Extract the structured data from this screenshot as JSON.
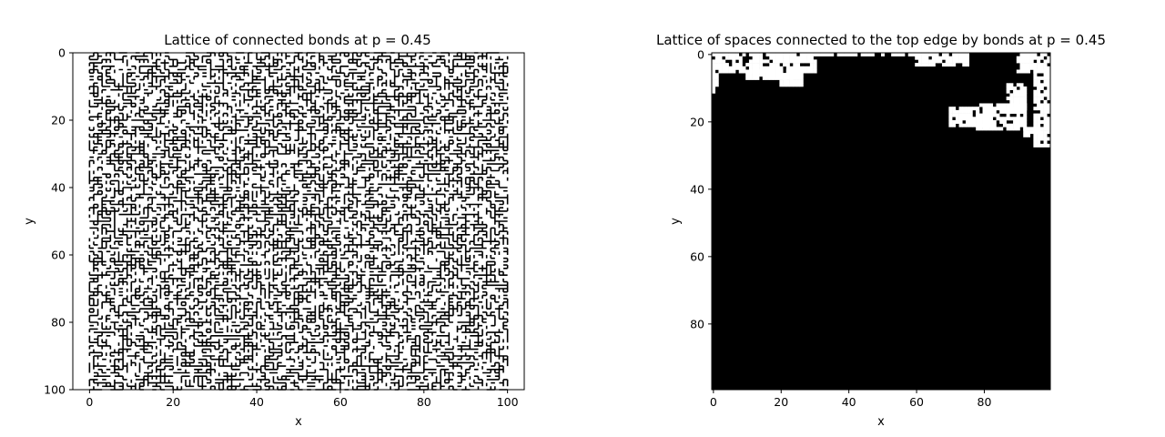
{
  "chart_data": [
    {
      "type": "line",
      "title": "Lattice of connected bonds at p = 0.45",
      "xlabel": "x",
      "ylabel": "y",
      "xlim": [
        -4,
        104
      ],
      "ylim": [
        100,
        0
      ],
      "xticks": [
        0,
        20,
        40,
        60,
        80,
        100
      ],
      "yticks": [
        0,
        20,
        40,
        60,
        80,
        100
      ],
      "xtick_labels": [
        "0",
        "20",
        "40",
        "60",
        "80",
        "100"
      ],
      "ytick_labels": [
        "0",
        "20",
        "40",
        "60",
        "80",
        "100"
      ],
      "lattice_size": 100,
      "bond_probability": 0.45,
      "line_color": "#000000",
      "background_color": "#ffffff",
      "grid": false
    },
    {
      "type": "heatmap",
      "title": "Lattice of spaces connected to the top edge by bonds at p = 0.45",
      "xlabel": "x",
      "ylabel": "y",
      "xlim": [
        -0.5,
        99.5
      ],
      "ylim": [
        99.5,
        -0.5
      ],
      "xticks": [
        0,
        20,
        40,
        60,
        80
      ],
      "yticks": [
        0,
        20,
        40,
        60,
        80
      ],
      "xtick_labels": [
        "0",
        "20",
        "40",
        "60",
        "80"
      ],
      "ytick_labels": [
        "0",
        "20",
        "40",
        "60",
        "80"
      ],
      "connected_color": "#000000",
      "unconnected_color": "#ffffff",
      "unconnected_regions": [
        {
          "x0": 0,
          "x1": 2,
          "y0": 0,
          "y1": 12
        },
        {
          "x0": 2,
          "x1": 31,
          "y0": 0,
          "y1": 6
        },
        {
          "x0": 10,
          "x1": 24,
          "y0": 5,
          "y1": 8
        },
        {
          "x0": 20,
          "x1": 27,
          "y0": 6,
          "y1": 10
        },
        {
          "x0": 31,
          "x1": 60,
          "y0": 0,
          "y1": 1
        },
        {
          "x0": 60,
          "x1": 76,
          "y0": 0,
          "y1": 4
        },
        {
          "x0": 70,
          "x1": 83,
          "y0": 16,
          "y1": 22
        },
        {
          "x0": 78,
          "x1": 93,
          "y0": 15,
          "y1": 23
        },
        {
          "x0": 87,
          "x1": 93,
          "y0": 9,
          "y1": 18
        },
        {
          "x0": 90,
          "x1": 100,
          "y0": 0,
          "y1": 6
        },
        {
          "x0": 95,
          "x1": 100,
          "y0": 5,
          "y1": 28
        },
        {
          "x0": 92,
          "x1": 97,
          "y0": 22,
          "y1": 25
        }
      ],
      "grid": false
    }
  ]
}
